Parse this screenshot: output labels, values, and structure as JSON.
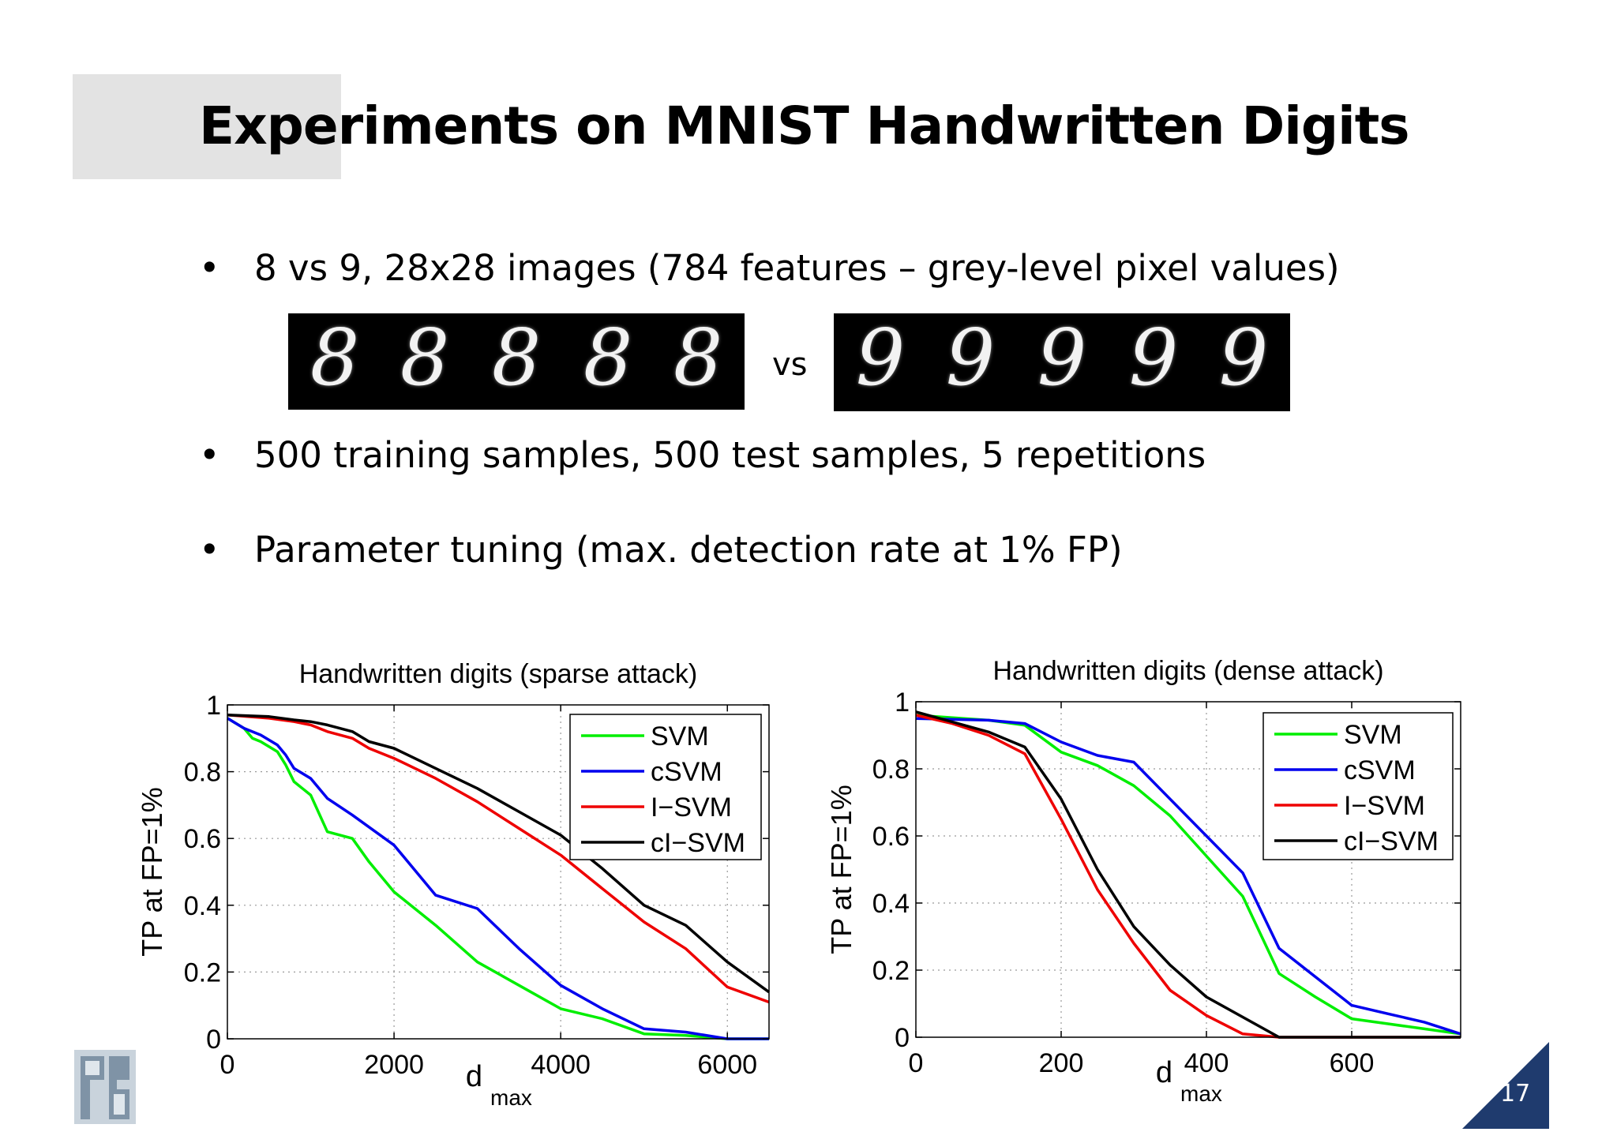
{
  "slide": {
    "title": "Experiments on MNIST Handwritten Digits",
    "page_number": "17",
    "bullets": [
      "8 vs 9, 28x28 images (784 features – grey-level pixel values)",
      "500 training samples, 500 test samples, 5 repetitions",
      "Parameter tuning (max. detection rate at 1% FP)"
    ],
    "bullet_symbol": "•",
    "digits": {
      "left": [
        "8",
        "8",
        "8",
        "8",
        "8"
      ],
      "vs": "vs",
      "right": [
        "9",
        "9",
        "9",
        "9",
        "9"
      ]
    }
  },
  "colors": {
    "SVM": "#00ee00",
    "cSVM": "#0000ee",
    "I-SVM": "#ee0000",
    "cI-SVM": "#000000",
    "accent": "#1f3b6e",
    "title_box": "#e3e3e3"
  },
  "chart_data": [
    {
      "type": "line",
      "title": "Handwritten digits (sparse attack)",
      "xlabel": "d",
      "xlabel_subscript": "max",
      "ylabel": "TP at FP=1%",
      "xlim": [
        0,
        6500
      ],
      "ylim": [
        0,
        1
      ],
      "xticks": [
        0,
        2000,
        4000,
        6000
      ],
      "xtick_labels": [
        "0",
        "2000",
        "4000",
        "6000"
      ],
      "yticks": [
        0,
        0.2,
        0.4,
        0.6,
        0.8,
        1
      ],
      "ytick_labels": [
        "0",
        "0.2",
        "0.4",
        "0.6",
        "0.8",
        "1"
      ],
      "grid": true,
      "legend": "top-right",
      "series": [
        {
          "name": "SVM",
          "color": "#00ee00",
          "x": [
            0,
            200,
            300,
            400,
            600,
            700,
            800,
            1000,
            1200,
            1500,
            1700,
            2000,
            2500,
            3000,
            3500,
            4000,
            4500,
            5000,
            5500,
            6000,
            6500
          ],
          "y": [
            0.96,
            0.93,
            0.9,
            0.89,
            0.86,
            0.82,
            0.77,
            0.73,
            0.62,
            0.6,
            0.53,
            0.44,
            0.34,
            0.23,
            0.16,
            0.09,
            0.06,
            0.015,
            0.01,
            0.0,
            0.0
          ]
        },
        {
          "name": "cSVM",
          "color": "#0000ee",
          "x": [
            0,
            200,
            400,
            600,
            700,
            800,
            1000,
            1200,
            1500,
            2000,
            2500,
            3000,
            3500,
            4000,
            4500,
            5000,
            5500,
            6000,
            6500
          ],
          "y": [
            0.96,
            0.93,
            0.91,
            0.88,
            0.85,
            0.81,
            0.78,
            0.72,
            0.67,
            0.58,
            0.43,
            0.39,
            0.27,
            0.16,
            0.09,
            0.03,
            0.02,
            0.0,
            0.0
          ]
        },
        {
          "name": "I−SVM",
          "color": "#ee0000",
          "x": [
            0,
            500,
            800,
            1000,
            1200,
            1500,
            1700,
            2000,
            2500,
            3000,
            3500,
            4000,
            4500,
            5000,
            5500,
            6000,
            6500
          ],
          "y": [
            0.97,
            0.96,
            0.95,
            0.94,
            0.92,
            0.9,
            0.87,
            0.84,
            0.78,
            0.71,
            0.63,
            0.55,
            0.45,
            0.35,
            0.27,
            0.155,
            0.11
          ]
        },
        {
          "name": "cI−SVM",
          "color": "#000000",
          "x": [
            0,
            500,
            800,
            1000,
            1200,
            1500,
            1700,
            2000,
            2500,
            3000,
            3500,
            4000,
            4500,
            5000,
            5500,
            6000,
            6500
          ],
          "y": [
            0.97,
            0.965,
            0.955,
            0.95,
            0.94,
            0.92,
            0.89,
            0.87,
            0.81,
            0.75,
            0.68,
            0.61,
            0.51,
            0.4,
            0.34,
            0.23,
            0.14
          ]
        }
      ]
    },
    {
      "type": "line",
      "title": "Handwritten digits (dense attack)",
      "xlabel": "d",
      "xlabel_subscript": "max",
      "ylabel": "TP at FP=1%",
      "xlim": [
        0,
        750
      ],
      "ylim": [
        0,
        1
      ],
      "xticks": [
        0,
        200,
        400,
        600
      ],
      "xtick_labels": [
        "0",
        "200",
        "400",
        "600"
      ],
      "yticks": [
        0,
        0.2,
        0.4,
        0.6,
        0.8,
        1
      ],
      "ytick_labels": [
        "0",
        "0.2",
        "0.4",
        "0.6",
        "0.8",
        "1"
      ],
      "grid": true,
      "legend": "top-right",
      "series": [
        {
          "name": "SVM",
          "color": "#00ee00",
          "x": [
            0,
            100,
            150,
            200,
            250,
            300,
            350,
            400,
            450,
            500,
            550,
            600,
            650,
            700,
            750
          ],
          "y": [
            0.96,
            0.945,
            0.93,
            0.85,
            0.81,
            0.75,
            0.66,
            0.54,
            0.42,
            0.19,
            0.12,
            0.055,
            0.04,
            0.025,
            0.01
          ]
        },
        {
          "name": "cSVM",
          "color": "#0000ee",
          "x": [
            0,
            100,
            150,
            200,
            250,
            300,
            350,
            400,
            450,
            500,
            550,
            600,
            650,
            700,
            750
          ],
          "y": [
            0.95,
            0.945,
            0.935,
            0.88,
            0.84,
            0.82,
            0.71,
            0.6,
            0.49,
            0.265,
            0.18,
            0.095,
            0.07,
            0.045,
            0.01
          ]
        },
        {
          "name": "I−SVM",
          "color": "#ee0000",
          "x": [
            0,
            50,
            100,
            150,
            200,
            250,
            300,
            350,
            400,
            450,
            500,
            550,
            600,
            650,
            700,
            750
          ],
          "y": [
            0.96,
            0.935,
            0.9,
            0.845,
            0.65,
            0.44,
            0.28,
            0.14,
            0.065,
            0.01,
            0.0,
            0.0,
            0.0,
            0.0,
            0.0,
            0.0
          ]
        },
        {
          "name": "cI−SVM",
          "color": "#000000",
          "x": [
            0,
            50,
            100,
            150,
            200,
            250,
            300,
            350,
            400,
            450,
            500,
            550,
            600,
            650,
            700,
            750
          ],
          "y": [
            0.97,
            0.94,
            0.91,
            0.865,
            0.71,
            0.5,
            0.33,
            0.215,
            0.12,
            0.06,
            0.0,
            0.0,
            0.0,
            0.0,
            0.0,
            0.0
          ]
        }
      ]
    }
  ]
}
